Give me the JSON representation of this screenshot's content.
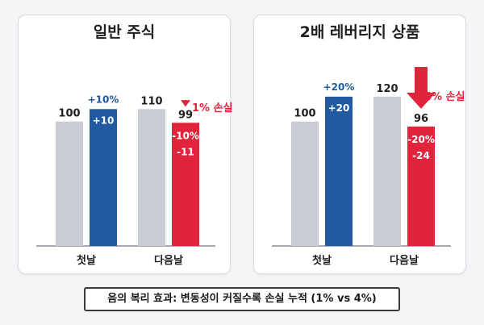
{
  "colors": {
    "gray": "#c9ccd2",
    "blue": "#215aa0",
    "red": "#e0243c",
    "gain_text": "#215aa0",
    "loss_text": "#e0243c",
    "value_text": "#1f1f1f"
  },
  "chart_data": [
    {
      "type": "bar",
      "title": "일반 주식",
      "categories": [
        "첫날",
        "다음날"
      ],
      "ylim": [
        0,
        140
      ],
      "grid": false,
      "bars": [
        {
          "category": "첫날",
          "kind": "base",
          "value": 100,
          "label": "100"
        },
        {
          "category": "첫날",
          "kind": "gain",
          "value": 110,
          "label": "+10",
          "above": "+10%"
        },
        {
          "category": "다음날",
          "kind": "base",
          "value": 110,
          "label": "110"
        },
        {
          "category": "다음날",
          "kind": "loss",
          "value": 99,
          "label": "99",
          "inside": [
            "-10%",
            "-11"
          ]
        }
      ],
      "annotation": {
        "text": "1% 손실",
        "arrow": "down"
      }
    },
    {
      "type": "bar",
      "title": "2배 레버리지 상품",
      "categories": [
        "첫날",
        "다음날"
      ],
      "ylim": [
        0,
        140
      ],
      "grid": false,
      "bars": [
        {
          "category": "첫날",
          "kind": "base",
          "value": 100,
          "label": "100"
        },
        {
          "category": "첫날",
          "kind": "gain",
          "value": 120,
          "label": "+20",
          "above": "+20%"
        },
        {
          "category": "다음날",
          "kind": "base",
          "value": 120,
          "label": "120"
        },
        {
          "category": "다음날",
          "kind": "loss",
          "value": 96,
          "label": "96",
          "inside": [
            "-20%",
            "-24"
          ]
        }
      ],
      "annotation": {
        "text": "4% 손실",
        "arrow": "down"
      }
    }
  ],
  "caption": "음의 복리 효과: 변동성이 커질수록 손실 누적 (1% vs 4%)"
}
